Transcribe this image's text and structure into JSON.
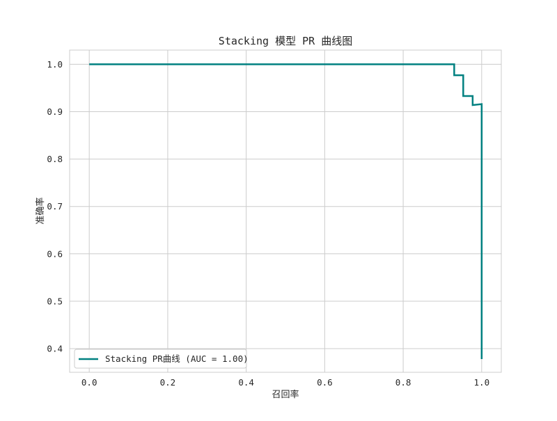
{
  "chart_data": {
    "type": "line",
    "title": "Stacking 模型 PR 曲线图",
    "xlabel": "召回率",
    "ylabel": "准确率",
    "xlim": [
      -0.05,
      1.05
    ],
    "ylim": [
      0.35,
      1.03
    ],
    "x_ticks": [
      "0.0",
      "0.2",
      "0.4",
      "0.6",
      "0.8",
      "1.0"
    ],
    "y_ticks": [
      "0.4",
      "0.5",
      "0.6",
      "0.7",
      "0.8",
      "0.9",
      "1.0"
    ],
    "x_tick_values": [
      0.0,
      0.2,
      0.4,
      0.6,
      0.8,
      1.0
    ],
    "y_tick_values": [
      0.4,
      0.5,
      0.6,
      0.7,
      0.8,
      0.9,
      1.0
    ],
    "grid": true,
    "legend_position": "lower-left",
    "colors": {
      "series": "#008080",
      "grid": "#cccccc",
      "frame": "#cccccc"
    },
    "series": [
      {
        "name": "Stacking PR曲线 (AUC = 1.00)",
        "x": [
          0.0,
          0.93,
          0.93,
          0.953,
          0.953,
          0.977,
          0.977,
          1.0,
          1.0
        ],
        "y": [
          1.0,
          1.0,
          0.977,
          0.977,
          0.933,
          0.933,
          0.914,
          0.916,
          0.378
        ]
      }
    ]
  }
}
